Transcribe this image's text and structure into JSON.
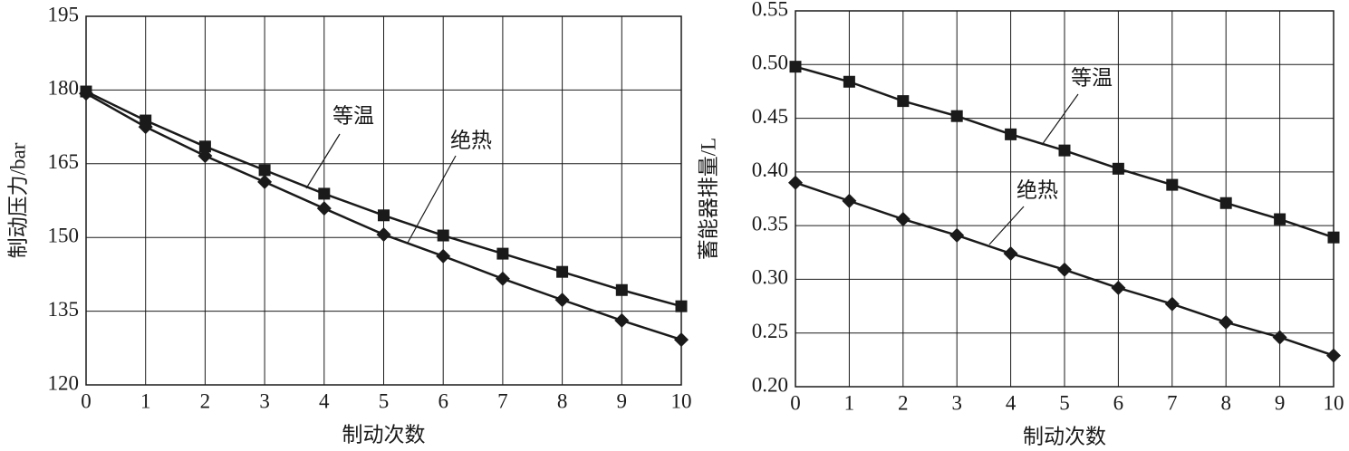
{
  "chart_data": [
    {
      "type": "line",
      "ylabel": "制动压力/bar",
      "xlabel": "制动次数",
      "x": [
        0,
        1,
        2,
        3,
        4,
        5,
        6,
        7,
        8,
        9,
        10
      ],
      "xlim": [
        0,
        10
      ],
      "xticks": [
        0,
        1,
        2,
        3,
        4,
        5,
        6,
        7,
        8,
        9,
        10
      ],
      "ylim": [
        120,
        195
      ],
      "yticks": [
        120,
        135,
        150,
        165,
        180,
        195
      ],
      "grid": true,
      "series": [
        {
          "name": "等温",
          "color": "#1a1a1a",
          "marker": "square",
          "values": [
            179.7,
            173.8,
            168.5,
            163.7,
            158.9,
            154.5,
            150.4,
            146.7,
            143.0,
            139.3,
            136.0
          ]
        },
        {
          "name": "绝热",
          "color": "#1a1a1a",
          "marker": "diamond",
          "values": [
            179.3,
            172.5,
            166.6,
            161.3,
            155.9,
            150.6,
            146.2,
            141.6,
            137.3,
            133.1,
            129.2
          ]
        }
      ]
    },
    {
      "type": "line",
      "ylabel": "蓄能器排量/L",
      "xlabel": "制动次数",
      "x": [
        0,
        1,
        2,
        3,
        4,
        5,
        6,
        7,
        8,
        9,
        10
      ],
      "xlim": [
        0,
        10
      ],
      "xticks": [
        0,
        1,
        2,
        3,
        4,
        5,
        6,
        7,
        8,
        9,
        10
      ],
      "ylim": [
        0.2,
        0.55
      ],
      "yticks": [
        {
          "value": 0.2,
          "label": "0.20"
        },
        0.25,
        {
          "value": 0.3,
          "label": "0.30"
        },
        0.35,
        {
          "value": 0.4,
          "label": "0.40"
        },
        0.45,
        {
          "value": 0.5,
          "label": "0.50"
        },
        0.55
      ],
      "grid": true,
      "series": [
        {
          "name": "等温",
          "color": "#1a1a1a",
          "marker": "square",
          "values": [
            0.498,
            0.484,
            0.466,
            0.452,
            0.435,
            0.42,
            0.403,
            0.388,
            0.371,
            0.356,
            0.339
          ]
        },
        {
          "name": "绝热",
          "color": "#1a1a1a",
          "marker": "diamond",
          "values": [
            0.39,
            0.373,
            0.356,
            0.341,
            0.324,
            0.309,
            0.292,
            0.277,
            0.26,
            0.246,
            0.229
          ]
        }
      ]
    }
  ]
}
